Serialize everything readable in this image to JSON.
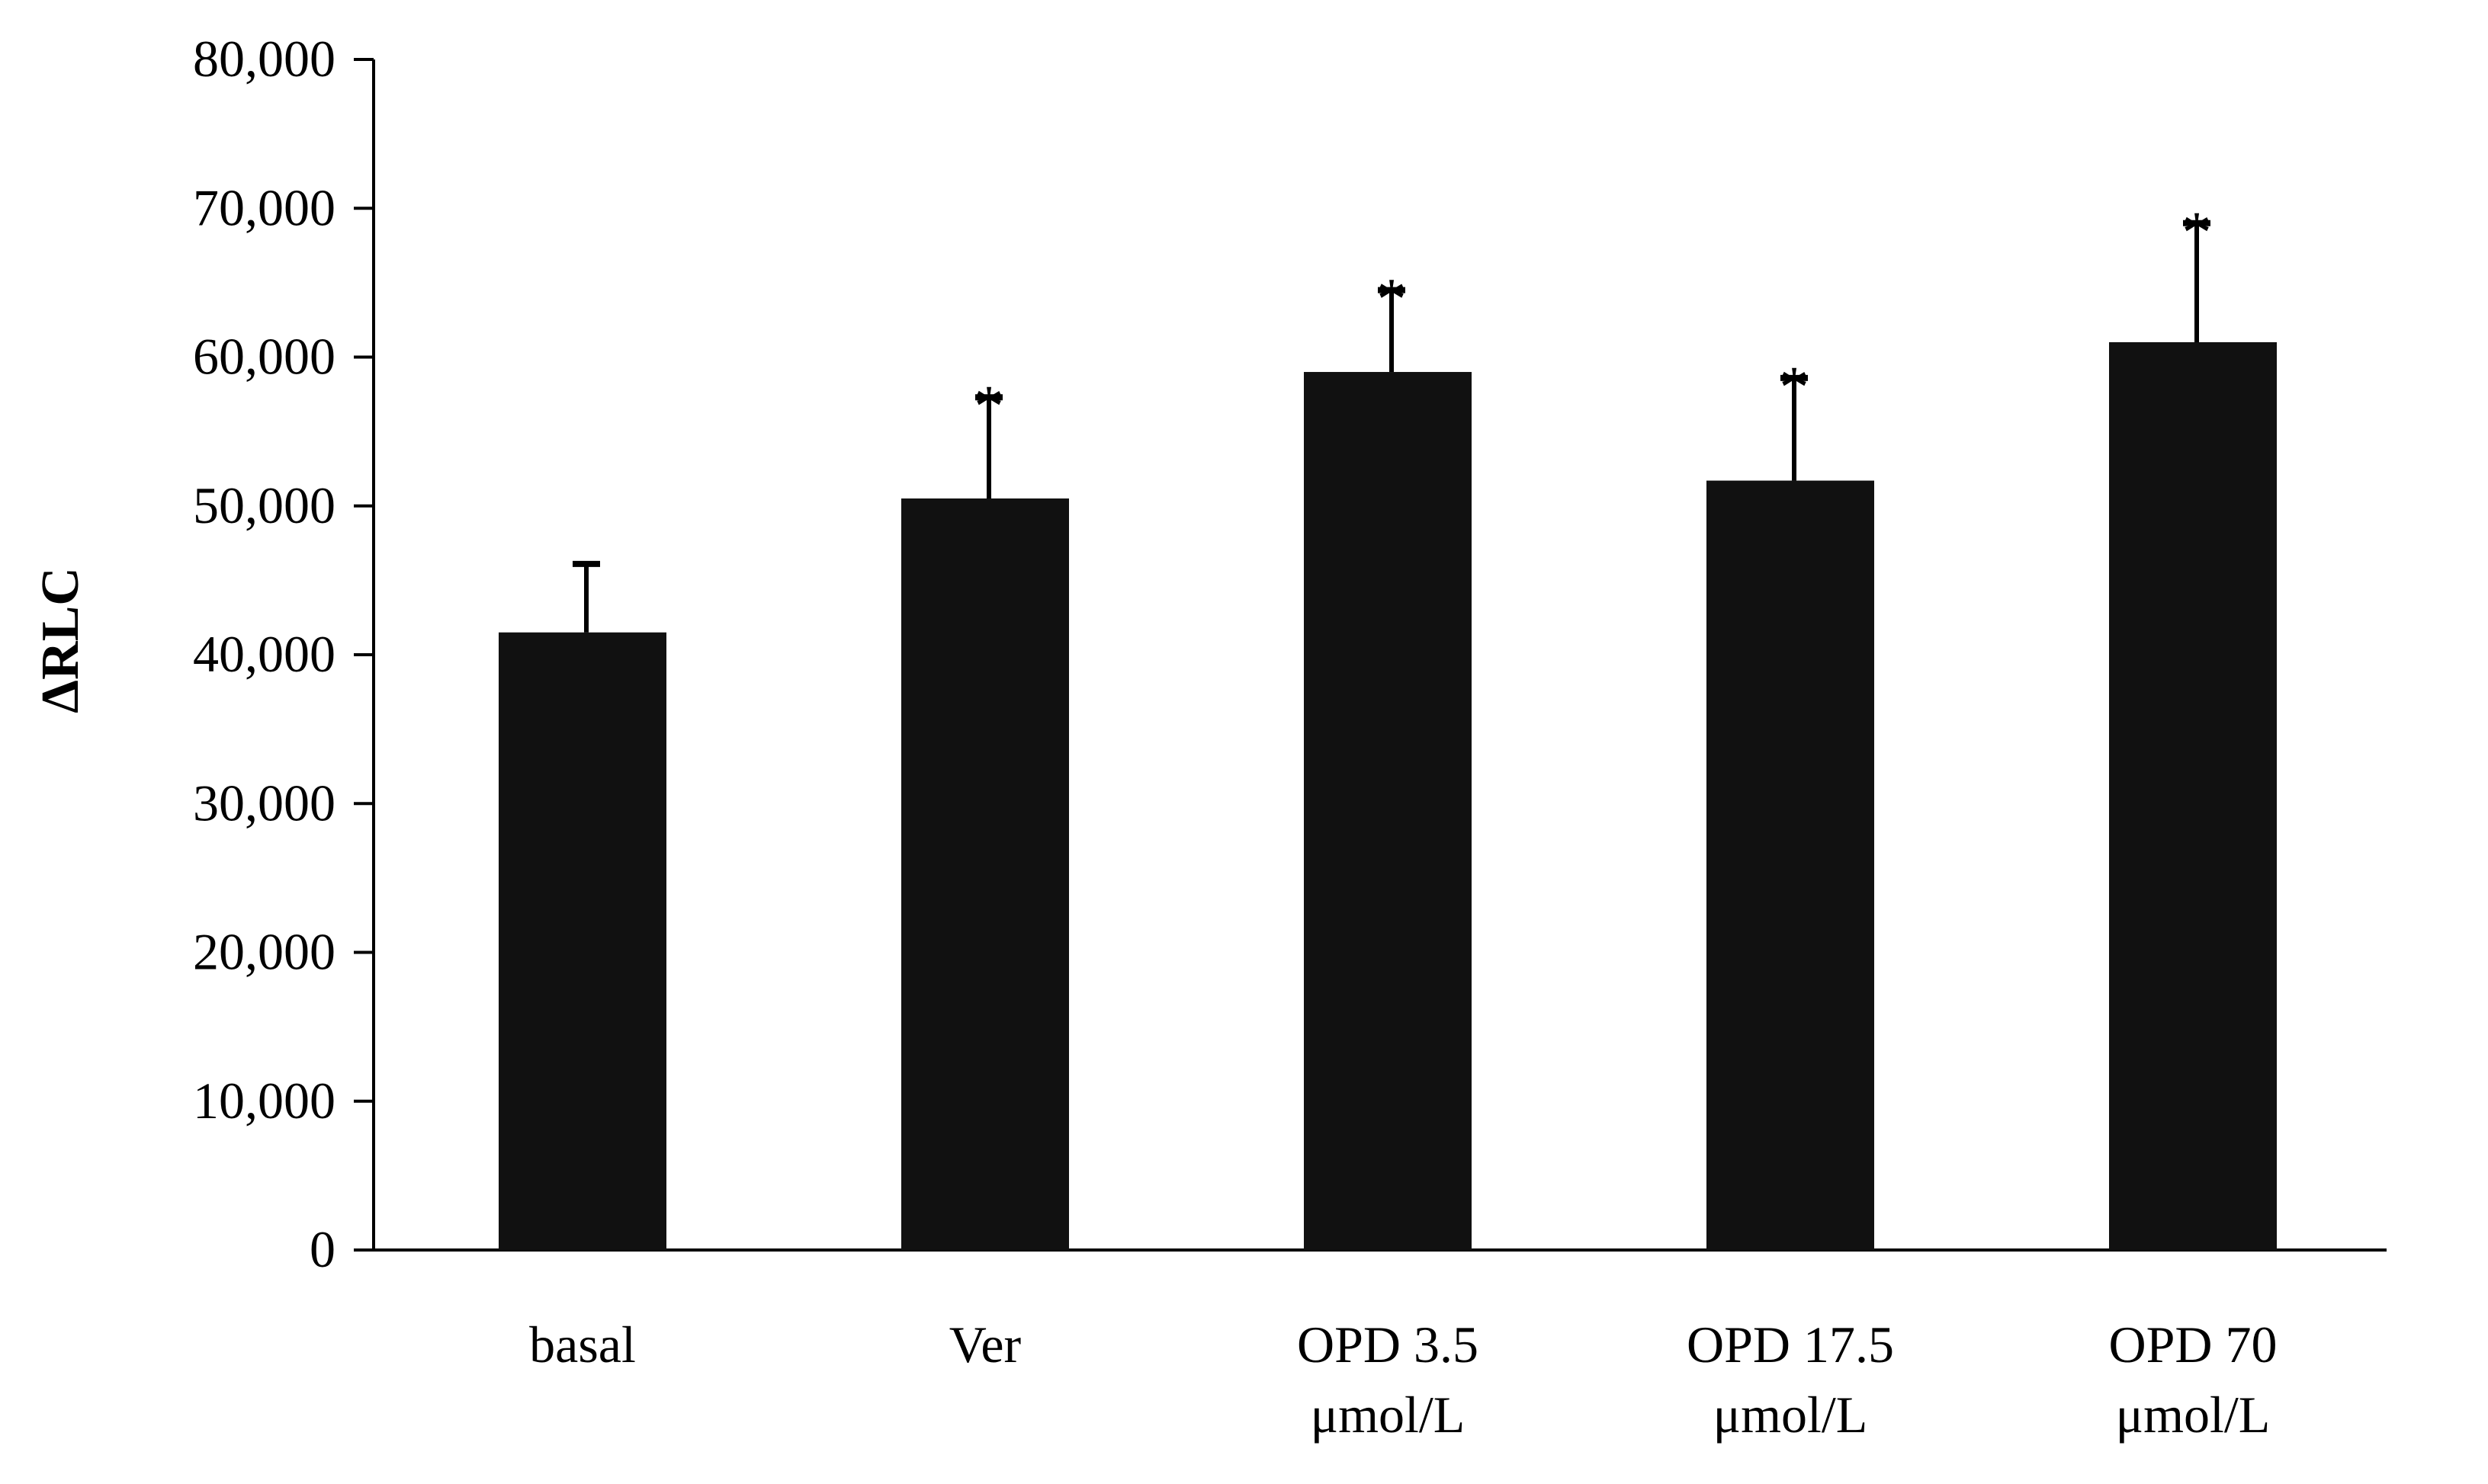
{
  "chart_data": {
    "type": "bar",
    "title": "",
    "xlabel": "",
    "ylabel": "ΔRLC",
    "ylim": [
      0,
      80000
    ],
    "yticks": [
      0,
      10000,
      20000,
      30000,
      40000,
      50000,
      60000,
      70000,
      80000
    ],
    "ytick_labels": [
      "0",
      "10,000",
      "20,000",
      "30,000",
      "40,000",
      "50,000",
      "60,000",
      "70,000",
      "80,000"
    ],
    "categories": [
      [
        "basal"
      ],
      [
        "Ver"
      ],
      [
        "OPD 3.5",
        "μmol/L"
      ],
      [
        "OPD 17.5",
        "μmol/L"
      ],
      [
        "OPD  70",
        "μmol/L"
      ]
    ],
    "values": [
      41500,
      50500,
      59000,
      51700,
      61000
    ],
    "errors": [
      4600,
      6800,
      5500,
      6900,
      8000
    ],
    "significance": [
      "",
      "*",
      "*",
      "*",
      "*"
    ],
    "bar_color": "#111111",
    "grid": false
  }
}
